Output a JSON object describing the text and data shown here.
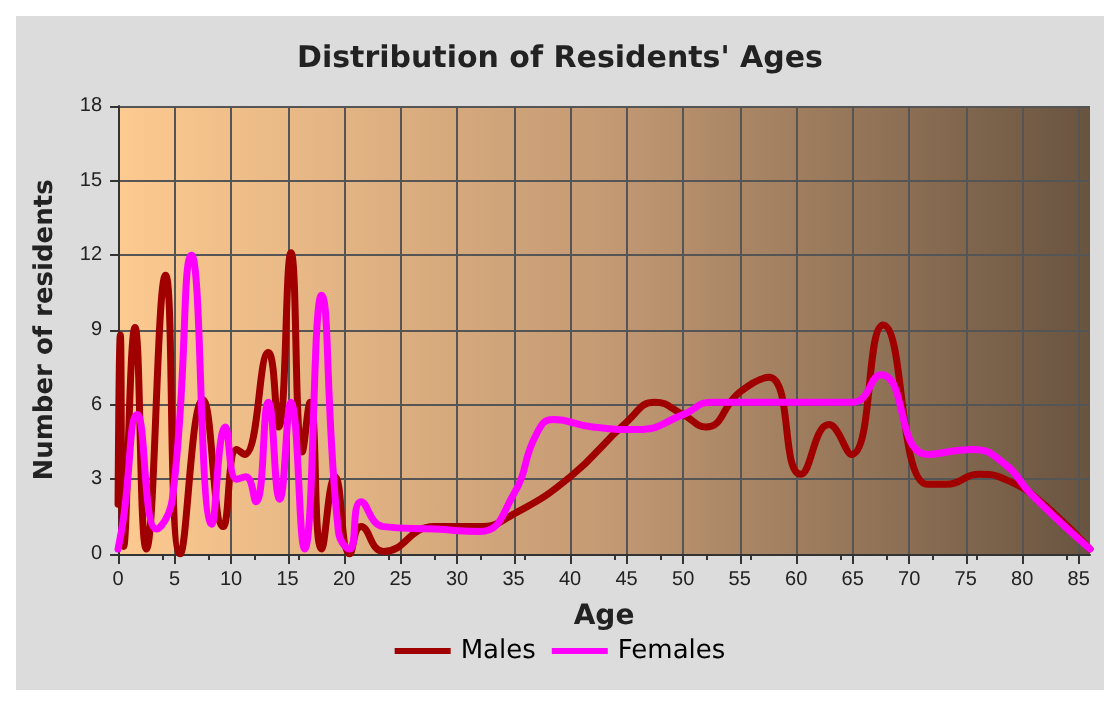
{
  "chart_data": {
    "type": "line",
    "title": "Distribution of Residents' Ages",
    "xlabel": "Age",
    "ylabel": "Number of residents",
    "xlim": [
      0,
      86
    ],
    "xticks": [
      0,
      5,
      10,
      15,
      20,
      25,
      30,
      35,
      40,
      45,
      50,
      55,
      60,
      65,
      70,
      75,
      80,
      85
    ],
    "ylim": [
      0,
      18
    ],
    "yticks": [
      0,
      3,
      6,
      9,
      12,
      15,
      18
    ],
    "grid": true,
    "legend": "bottom",
    "marker": "none",
    "series": [
      {
        "name": "Males",
        "color": "#a00000",
        "x": [
          0,
          0.2,
          0.5,
          1.5,
          2.5,
          4.2,
          5.5,
          7.5,
          9.3,
          10.5,
          11.2,
          13.3,
          14.2,
          15.3,
          16.3,
          17,
          18,
          19.2,
          20.5,
          21.5,
          23.5,
          28,
          32,
          35,
          40,
          45,
          47.5,
          50,
          52,
          55,
          57.6,
          60.4,
          62.9,
          64.9,
          67.7,
          71.6,
          73.3,
          76.2,
          79,
          81.9,
          86
        ],
        "values": [
          2,
          8.8,
          0.3,
          9.1,
          0.2,
          11.2,
          0,
          6.2,
          1.1,
          4.2,
          4,
          8.1,
          5.1,
          12.1,
          4.1,
          6.1,
          0.2,
          3.1,
          0,
          1.1,
          0.1,
          1.1,
          1.1,
          1.6,
          3.1,
          5.3,
          6.1,
          5.6,
          5.1,
          6.5,
          7.1,
          3.2,
          5.2,
          4,
          9.2,
          2.8,
          2.8,
          3.2,
          2.9,
          2,
          0.2
        ]
      },
      {
        "name": "Females",
        "color": "#ff00ff",
        "x": [
          0,
          0.5,
          1.7,
          3.4,
          4.8,
          6.5,
          8.3,
          9.5,
          10.5,
          11.3,
          12.2,
          13.3,
          14.3,
          15.3,
          16.5,
          18,
          19.5,
          20.5,
          21.5,
          23.5,
          28,
          32,
          35,
          37,
          38.5,
          42,
          46,
          50,
          52.5,
          55,
          60,
          65,
          67.5,
          71.6,
          75.6,
          78.5,
          80.8,
          86
        ],
        "values": [
          0.2,
          1.5,
          5.6,
          1,
          2.2,
          12,
          1.2,
          5.1,
          3,
          3.1,
          2.1,
          6.1,
          2.2,
          6.1,
          0.2,
          10.4,
          0.9,
          0.2,
          2.1,
          1.1,
          1,
          0.9,
          2.4,
          4.8,
          5.4,
          5.1,
          5,
          5.6,
          6.1,
          6.1,
          6.1,
          6.1,
          7.2,
          4,
          4.2,
          3.6,
          2.4,
          0.2
        ]
      }
    ]
  }
}
